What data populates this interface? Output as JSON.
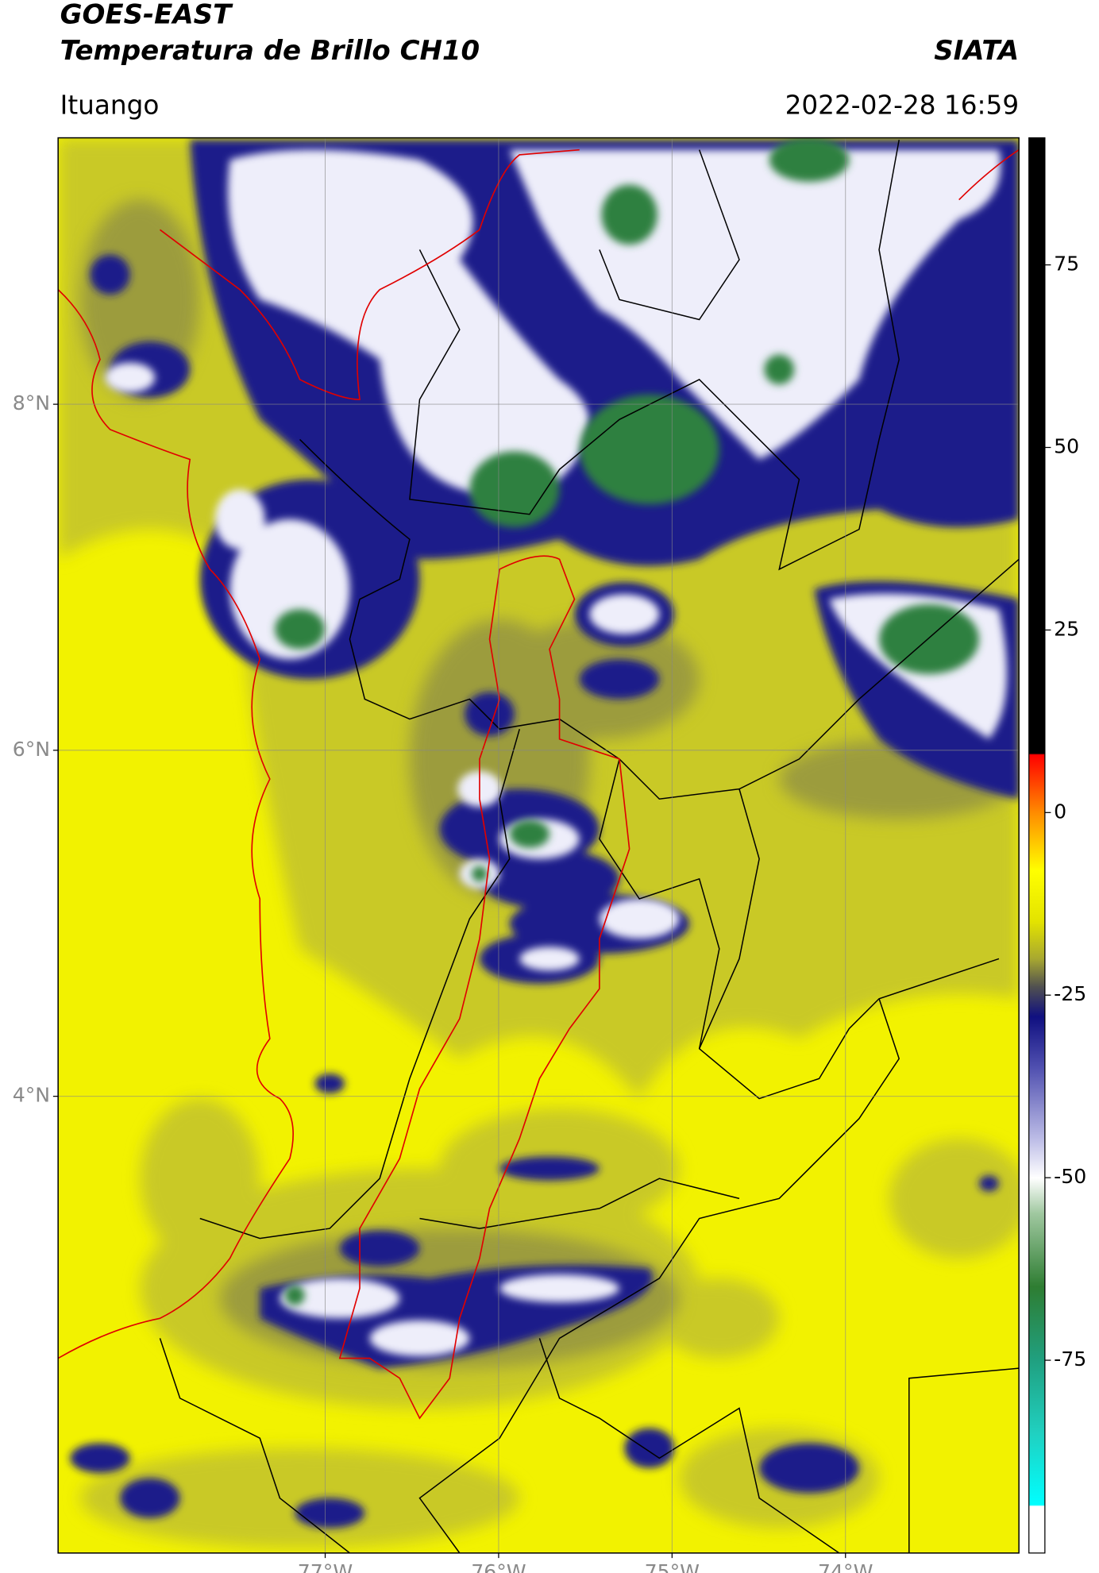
{
  "header": {
    "satellite": "GOES-EAST",
    "product": "Temperatura de Brillo CH10",
    "source": "SIATA",
    "location": "Ituango",
    "datetime": "2022-02-28 16:59"
  },
  "map": {
    "xlim": [
      -78.54,
      -73.0
    ],
    "ylim": [
      1.36,
      9.54
    ],
    "xticks": [
      {
        "value": -77,
        "label": "77°W"
      },
      {
        "value": -76,
        "label": "76°W"
      },
      {
        "value": -75,
        "label": "75°W"
      },
      {
        "value": -74,
        "label": "74°W"
      }
    ],
    "yticks": [
      {
        "value": 8,
        "label": "8°N"
      },
      {
        "value": 6,
        "label": "6°N"
      },
      {
        "value": 4,
        "label": "4°N"
      }
    ],
    "grid": true
  },
  "colorbar": {
    "lim": [
      -101.4,
      92.4
    ],
    "ticks": [
      75,
      50,
      25,
      0,
      -25,
      -50,
      -75
    ]
  }
}
